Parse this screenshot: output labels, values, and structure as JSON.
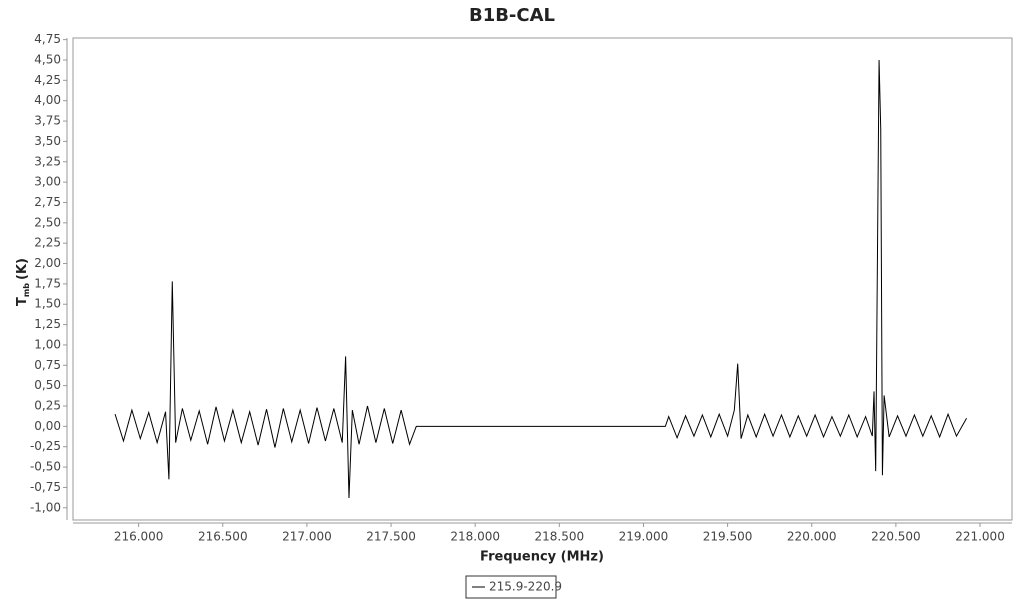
{
  "chart_data": {
    "type": "line",
    "title": "B1B-CAL",
    "x_label": "Frequency (MHz)",
    "y_label": "T",
    "y_label_sub": "mb",
    "y_label_unit": "(K)",
    "x": [
      215.86,
      215.91,
      215.96,
      216.01,
      216.06,
      216.11,
      216.16,
      216.18,
      216.2,
      216.22,
      216.26,
      216.31,
      216.36,
      216.41,
      216.46,
      216.51,
      216.56,
      216.61,
      216.66,
      216.71,
      216.76,
      216.81,
      216.86,
      216.91,
      216.96,
      217.01,
      217.06,
      217.11,
      217.16,
      217.21,
      217.23,
      217.25,
      217.27,
      217.31,
      217.36,
      217.41,
      217.46,
      217.51,
      217.56,
      217.61,
      217.65,
      219.13,
      219.15,
      219.2,
      219.25,
      219.3,
      219.35,
      219.4,
      219.45,
      219.5,
      219.54,
      219.56,
      219.58,
      219.62,
      219.67,
      219.72,
      219.77,
      219.82,
      219.87,
      219.92,
      219.97,
      220.02,
      220.07,
      220.12,
      220.17,
      220.22,
      220.27,
      220.32,
      220.36,
      220.37,
      220.38,
      220.4,
      220.41,
      220.42,
      220.43,
      220.46,
      220.51,
      220.56,
      220.61,
      220.66,
      220.71,
      220.76,
      220.81,
      220.86,
      220.92
    ],
    "series": [
      {
        "name": "215.9-220.9",
        "color": "#000000",
        "values": [
          0.15,
          -0.18,
          0.2,
          -0.15,
          0.17,
          -0.2,
          0.18,
          -0.65,
          1.78,
          -0.2,
          0.22,
          -0.17,
          0.19,
          -0.22,
          0.24,
          -0.18,
          0.2,
          -0.2,
          0.18,
          -0.23,
          0.21,
          -0.26,
          0.22,
          -0.19,
          0.2,
          -0.21,
          0.23,
          -0.18,
          0.22,
          -0.2,
          0.86,
          -0.88,
          0.2,
          -0.22,
          0.25,
          -0.2,
          0.22,
          -0.21,
          0.2,
          -0.22,
          0,
          0,
          0.12,
          -0.14,
          0.13,
          -0.12,
          0.14,
          -0.13,
          0.15,
          -0.12,
          0.2,
          0.77,
          -0.15,
          0.14,
          -0.13,
          0.15,
          -0.12,
          0.14,
          -0.13,
          0.13,
          -0.12,
          0.14,
          -0.13,
          0.12,
          -0.12,
          0.14,
          -0.13,
          0.12,
          -0.12,
          0.43,
          -0.55,
          4.5,
          3.65,
          -0.6,
          0.38,
          -0.13,
          0.13,
          -0.12,
          0.14,
          -0.12,
          0.13,
          -0.13,
          0.15,
          -0.12,
          0.1
        ]
      }
    ],
    "xlim": [
      215.61,
      221.19
    ],
    "ylim": [
      -1.15,
      4.77
    ],
    "xticks": [
      {
        "value": 216,
        "label": "216.000"
      },
      {
        "value": 216.5,
        "label": "216.500"
      },
      {
        "value": 217,
        "label": "217.000"
      },
      {
        "value": 217.5,
        "label": "217.500"
      },
      {
        "value": 218,
        "label": "218.000"
      },
      {
        "value": 218.5,
        "label": "218.500"
      },
      {
        "value": 219,
        "label": "219.000"
      },
      {
        "value": 219.5,
        "label": "219.500"
      },
      {
        "value": 220,
        "label": "220.000"
      },
      {
        "value": 220.5,
        "label": "220.500"
      },
      {
        "value": 221,
        "label": "221.000"
      }
    ],
    "yticks": [
      {
        "value": -1,
        "label": "-1,00"
      },
      {
        "value": -0.75,
        "label": "-0,75"
      },
      {
        "value": -0.5,
        "label": "-0,50"
      },
      {
        "value": -0.25,
        "label": "-0,25"
      },
      {
        "value": 0,
        "label": "0,00"
      },
      {
        "value": 0.25,
        "label": "0,25"
      },
      {
        "value": 0.5,
        "label": "0,50"
      },
      {
        "value": 0.75,
        "label": "0,75"
      },
      {
        "value": 1,
        "label": "1,00"
      },
      {
        "value": 1.25,
        "label": "1,25"
      },
      {
        "value": 1.5,
        "label": "1,50"
      },
      {
        "value": 1.75,
        "label": "1,75"
      },
      {
        "value": 2,
        "label": "2,00"
      },
      {
        "value": 2.25,
        "label": "2,25"
      },
      {
        "value": 2.5,
        "label": "2,50"
      },
      {
        "value": 2.75,
        "label": "2,75"
      },
      {
        "value": 3,
        "label": "3,00"
      },
      {
        "value": 3.25,
        "label": "3,25"
      },
      {
        "value": 3.5,
        "label": "3,50"
      },
      {
        "value": 3.75,
        "label": "3,75"
      },
      {
        "value": 4,
        "label": "4,00"
      },
      {
        "value": 4.25,
        "label": "4,25"
      },
      {
        "value": 4.5,
        "label": "4,50"
      },
      {
        "value": 4.75,
        "label": "4,75"
      }
    ],
    "grid": false
  }
}
